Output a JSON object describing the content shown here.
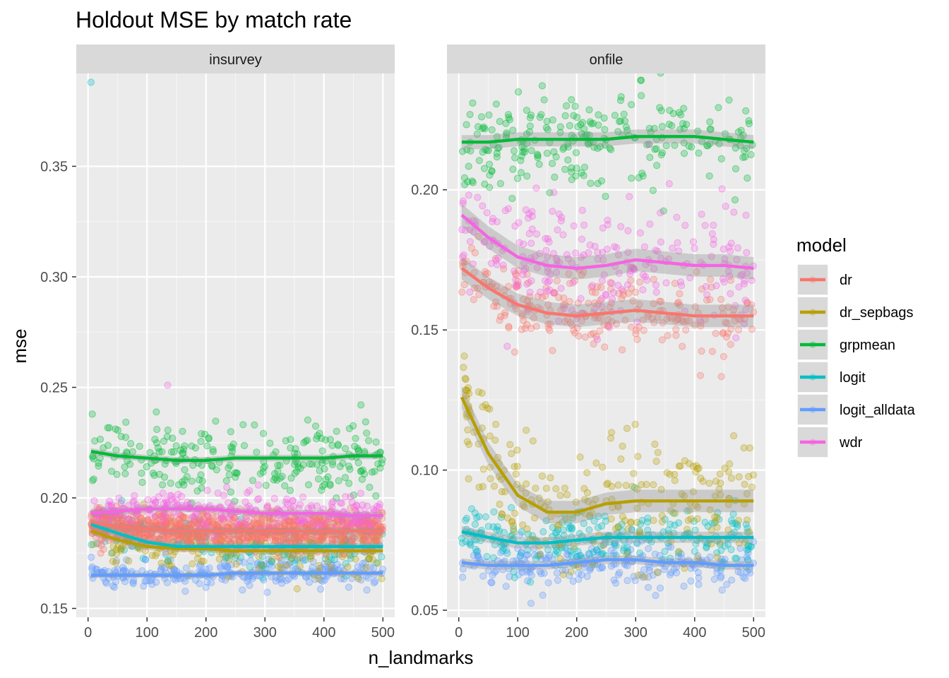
{
  "chart_data": {
    "type": "scatter",
    "title": "Holdout MSE by match rate",
    "xlabel": "n_landmarks",
    "ylabel": "mse",
    "legend": {
      "title": "model",
      "placement": "right"
    },
    "grid": true,
    "series_styles": [
      {
        "name": "dr",
        "color": "#F8766D"
      },
      {
        "name": "dr_sepbags",
        "color": "#B79F00"
      },
      {
        "name": "grpmean",
        "color": "#00BA38"
      },
      {
        "name": "logit",
        "color": "#00BFC4"
      },
      {
        "name": "logit_alldata",
        "color": "#619CFF"
      },
      {
        "name": "wdr",
        "color": "#F564E3"
      }
    ],
    "facets": [
      {
        "label": "insurvey",
        "xlim": [
          -20,
          520
        ],
        "ylim": [
          0.146,
          0.392
        ],
        "x_ticks": [
          0,
          100,
          200,
          300,
          400,
          500
        ],
        "y_ticks": [
          0.15,
          0.2,
          0.25,
          0.3,
          0.35
        ],
        "y_tick_labels": [
          "0.15",
          "0.20",
          "0.25",
          "0.30",
          "0.35"
        ],
        "series": [
          {
            "name": "dr",
            "x": [
              5,
              50,
              100,
              150,
              200,
              250,
              300,
              350,
              400,
              450,
              500
            ],
            "y": [
              0.189,
              0.187,
              0.186,
              0.185,
              0.185,
              0.185,
              0.185,
              0.185,
              0.185,
              0.185,
              0.185
            ],
            "noise": 0.004,
            "points": 1000,
            "band": 0.0015
          },
          {
            "name": "dr_sepbags",
            "x": [
              5,
              50,
              100,
              150,
              200,
              250,
              300,
              350,
              400,
              450,
              500
            ],
            "y": [
              0.185,
              0.181,
              0.178,
              0.177,
              0.177,
              0.176,
              0.176,
              0.176,
              0.176,
              0.176,
              0.176
            ],
            "noise": 0.006,
            "points": 200,
            "band": 0.0015
          },
          {
            "name": "grpmean",
            "x": [
              5,
              50,
              100,
              150,
              200,
              250,
              300,
              350,
              400,
              450,
              500
            ],
            "y": [
              0.221,
              0.219,
              0.218,
              0.217,
              0.217,
              0.218,
              0.218,
              0.218,
              0.218,
              0.219,
              0.219
            ],
            "noise": 0.008,
            "points": 250,
            "band": 0.0015
          },
          {
            "name": "logit",
            "x": [
              5,
              50,
              100,
              150,
              200,
              250,
              300,
              350,
              400,
              450,
              500
            ],
            "y": [
              0.188,
              0.184,
              0.18,
              0.178,
              0.178,
              0.178,
              0.178,
              0.178,
              0.178,
              0.178,
              0.178
            ],
            "noise": 0.005,
            "points": 200,
            "band": 0.0015,
            "extra": [
              [
                5,
                0.388
              ]
            ]
          },
          {
            "name": "logit_alldata",
            "x": [
              5,
              50,
              100,
              150,
              200,
              250,
              300,
              350,
              400,
              450,
              500
            ],
            "y": [
              0.165,
              0.165,
              0.165,
              0.165,
              0.165,
              0.166,
              0.166,
              0.166,
              0.166,
              0.166,
              0.166
            ],
            "noise": 0.003,
            "points": 250,
            "band": 0.0012
          },
          {
            "name": "wdr",
            "x": [
              5,
              50,
              100,
              150,
              200,
              250,
              300,
              350,
              400,
              450,
              500
            ],
            "y": [
              0.193,
              0.194,
              0.195,
              0.195,
              0.195,
              0.194,
              0.193,
              0.193,
              0.193,
              0.192,
              0.192
            ],
            "noise": 0.004,
            "points": 250,
            "band": 0.0015,
            "extra": [
              [
                135,
                0.251
              ]
            ]
          }
        ]
      },
      {
        "label": "onfile",
        "xlim": [
          -20,
          520
        ],
        "ylim": [
          0.0475,
          0.2415
        ],
        "x_ticks": [
          0,
          100,
          200,
          300,
          400,
          500
        ],
        "y_ticks": [
          0.05,
          0.1,
          0.15,
          0.2
        ],
        "y_tick_labels": [
          "0.05",
          "0.10",
          "0.15",
          "0.20"
        ],
        "series": [
          {
            "name": "dr",
            "x": [
              5,
              50,
              100,
              150,
              200,
              250,
              300,
              350,
              400,
              450,
              500
            ],
            "y": [
              0.172,
              0.165,
              0.159,
              0.156,
              0.155,
              0.156,
              0.157,
              0.156,
              0.155,
              0.155,
              0.155
            ],
            "noise": 0.007,
            "points": 250,
            "band": 0.004
          },
          {
            "name": "dr_sepbags",
            "x": [
              5,
              50,
              100,
              150,
              200,
              250,
              300,
              350,
              400,
              450,
              500
            ],
            "y": [
              0.126,
              0.106,
              0.091,
              0.085,
              0.085,
              0.088,
              0.089,
              0.089,
              0.089,
              0.089,
              0.089
            ],
            "noise": 0.011,
            "points": 250,
            "band": 0.004
          },
          {
            "name": "grpmean",
            "x": [
              5,
              50,
              100,
              150,
              200,
              250,
              300,
              350,
              400,
              450,
              500
            ],
            "y": [
              0.217,
              0.217,
              0.218,
              0.218,
              0.218,
              0.218,
              0.219,
              0.219,
              0.219,
              0.218,
              0.217
            ],
            "noise": 0.008,
            "points": 250,
            "band": 0.0025
          },
          {
            "name": "logit",
            "x": [
              5,
              50,
              100,
              150,
              200,
              250,
              300,
              350,
              400,
              450,
              500
            ],
            "y": [
              0.078,
              0.076,
              0.074,
              0.074,
              0.075,
              0.076,
              0.076,
              0.076,
              0.076,
              0.076,
              0.076
            ],
            "noise": 0.005,
            "points": 250,
            "band": 0.002
          },
          {
            "name": "logit_alldata",
            "x": [
              5,
              50,
              100,
              150,
              200,
              250,
              300,
              350,
              400,
              450,
              500
            ],
            "y": [
              0.067,
              0.066,
              0.066,
              0.066,
              0.067,
              0.068,
              0.068,
              0.067,
              0.067,
              0.066,
              0.066
            ],
            "noise": 0.004,
            "points": 250,
            "band": 0.0015
          },
          {
            "name": "wdr",
            "x": [
              5,
              50,
              100,
              150,
              200,
              250,
              300,
              350,
              400,
              450,
              500
            ],
            "y": [
              0.191,
              0.183,
              0.176,
              0.173,
              0.172,
              0.173,
              0.175,
              0.174,
              0.173,
              0.173,
              0.172
            ],
            "noise": 0.011,
            "points": 250,
            "band": 0.004
          }
        ]
      }
    ]
  }
}
